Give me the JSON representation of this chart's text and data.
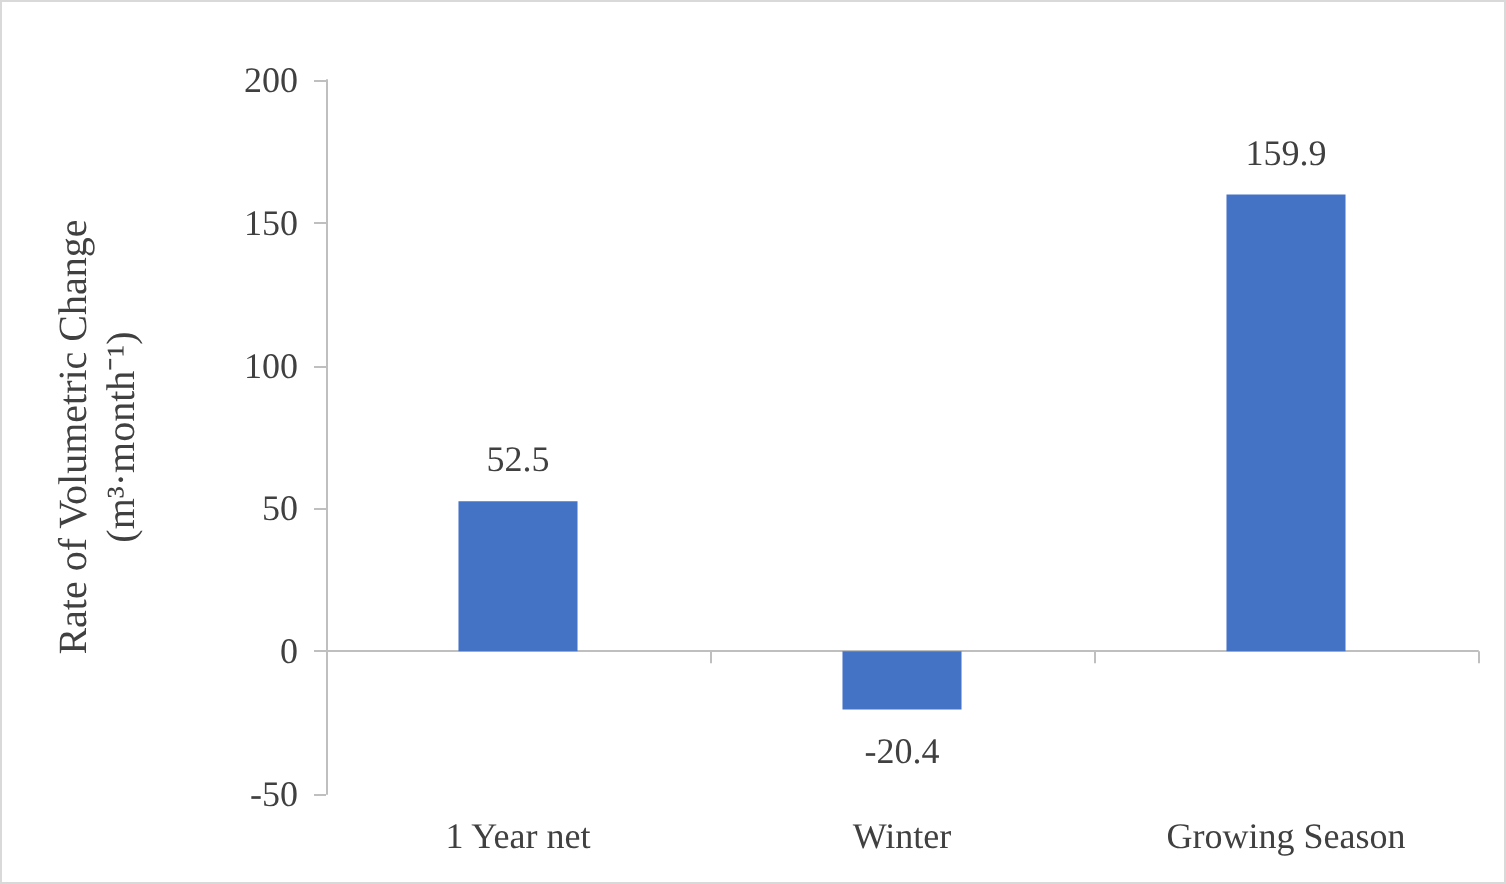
{
  "chart_data": {
    "type": "bar",
    "ylabel": "Rate of Volumetric Change\n(m³·month⁻¹)",
    "categories": [
      "1 Year net",
      "Winter",
      "Growing Season"
    ],
    "values": [
      52.5,
      -20.4,
      159.9
    ],
    "color": "#4472c4",
    "ylim": [
      -50,
      200
    ],
    "yticks": [
      -50,
      0,
      50,
      100,
      150,
      200
    ],
    "data_labels": true
  }
}
